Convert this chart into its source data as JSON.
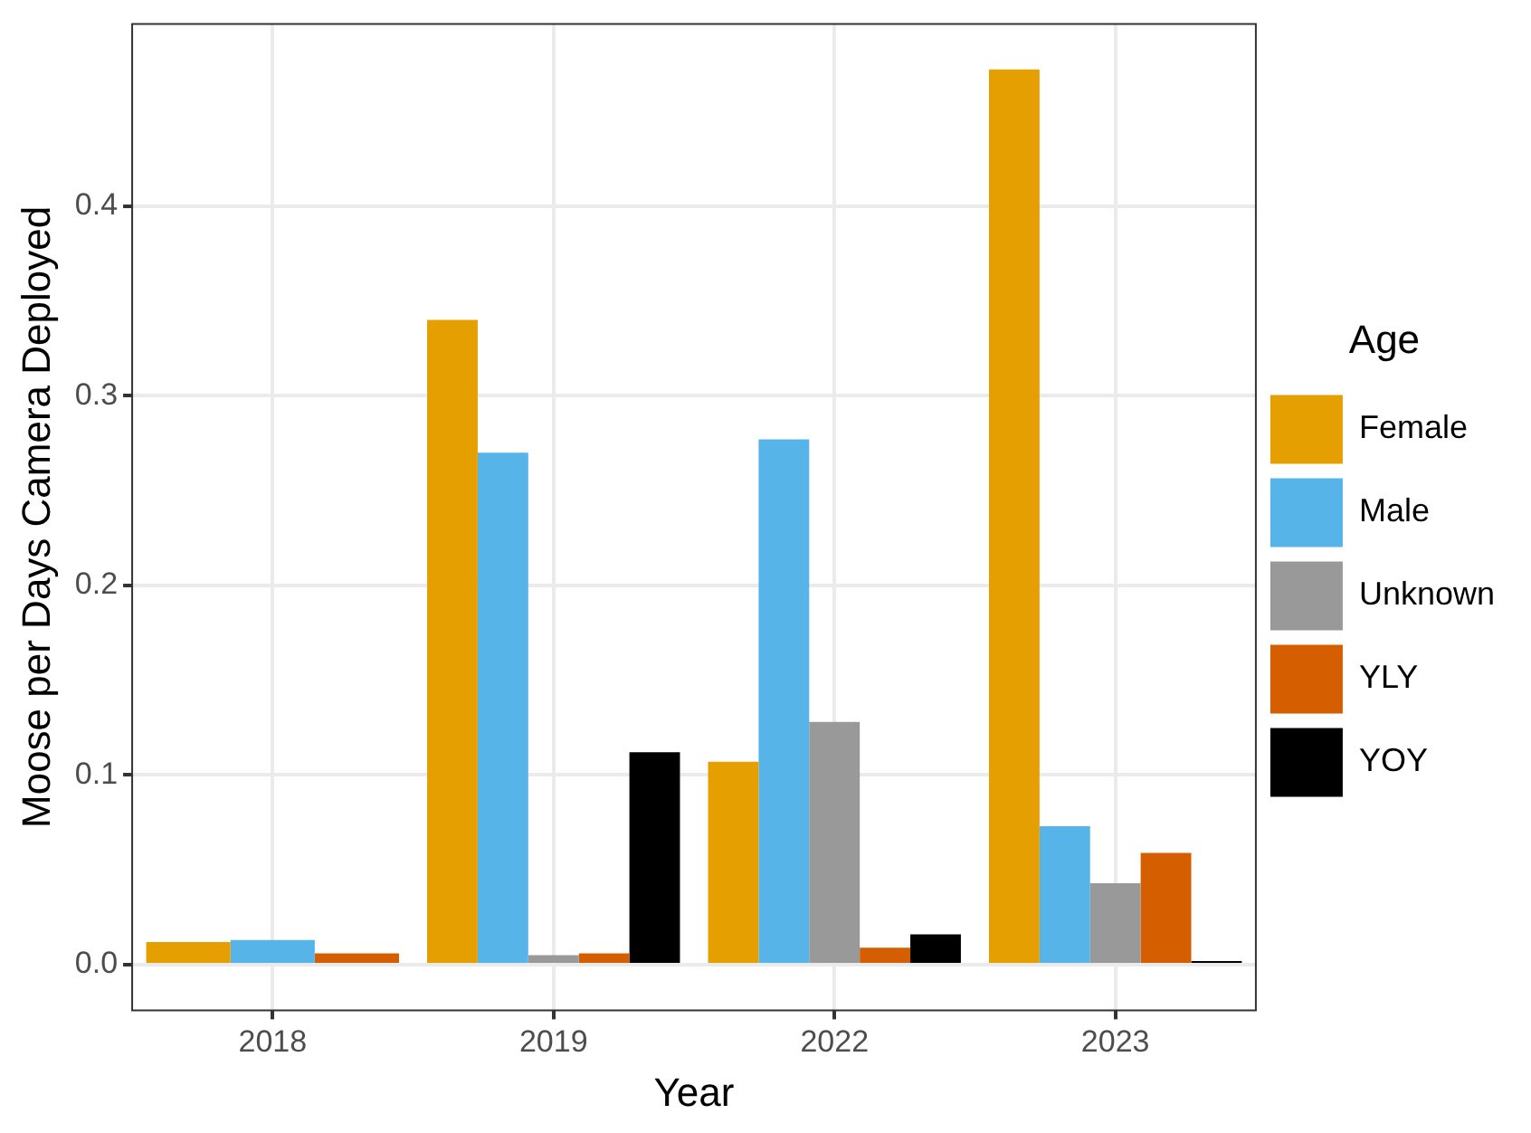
{
  "chart_data": {
    "type": "bar",
    "xlabel": "Year",
    "ylabel": "Moose per Days Camera Deployed",
    "legend_title": "Age",
    "categories": [
      "2018",
      "2019",
      "2022",
      "2023"
    ],
    "series": [
      {
        "name": "Female",
        "color": "#e69f00",
        "values": [
          0.012,
          0.34,
          0.107,
          0.472
        ]
      },
      {
        "name": "Male",
        "color": "#56b4e9",
        "values": [
          0.013,
          0.27,
          0.277,
          0.073
        ]
      },
      {
        "name": "Unknown",
        "color": "#999999",
        "values": [
          null,
          0.005,
          0.128,
          0.043
        ]
      },
      {
        "name": "YLY",
        "color": "#d55e00",
        "values": [
          0.006,
          0.006,
          0.009,
          0.059
        ]
      },
      {
        "name": "YOY",
        "color": "#000000",
        "values": [
          null,
          0.112,
          0.016,
          0.002
        ]
      }
    ],
    "ylim": [
      -0.024,
      0.496
    ],
    "yticks": [
      {
        "value": 0,
        "label": "0.0"
      },
      {
        "value": 0.1,
        "label": "0.1"
      },
      {
        "value": 0.2,
        "label": "0.2"
      },
      {
        "value": 0.3,
        "label": "0.3"
      },
      {
        "value": 0.4,
        "label": "0.4"
      }
    ],
    "grid": true,
    "legend": "right"
  }
}
